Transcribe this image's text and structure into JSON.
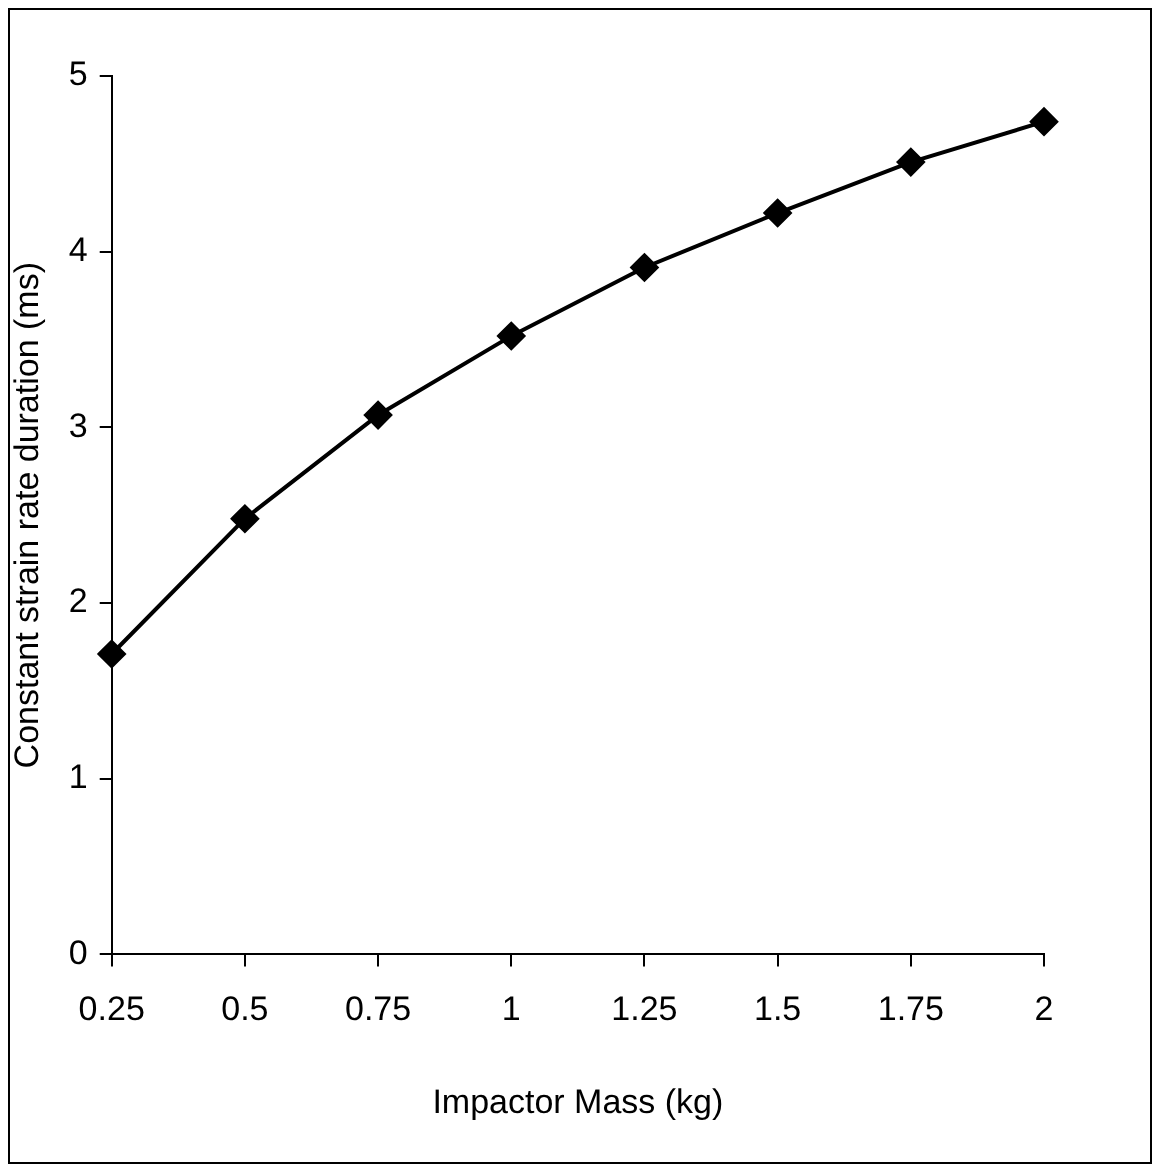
{
  "chart_data": {
    "type": "line",
    "xlabel": "Impactor Mass (kg)",
    "ylabel": "Constant strain rate duration (ms)",
    "x": [
      0.25,
      0.5,
      0.75,
      1,
      1.25,
      1.5,
      1.75,
      2
    ],
    "series": [
      {
        "color": "#000000",
        "values": [
          1.71,
          2.48,
          3.07,
          3.52,
          3.91,
          4.22,
          4.51,
          4.74
        ]
      }
    ],
    "xlim": [
      0.25,
      2
    ],
    "xticks": [
      0.25,
      0.5,
      0.75,
      1,
      1.25,
      1.5,
      1.75,
      2
    ],
    "ylim": [
      0,
      5
    ],
    "yticks": [
      0,
      1,
      2,
      3,
      4,
      5
    ],
    "grid": false,
    "legend": false,
    "marker": "diamond",
    "line_style": "solid"
  }
}
